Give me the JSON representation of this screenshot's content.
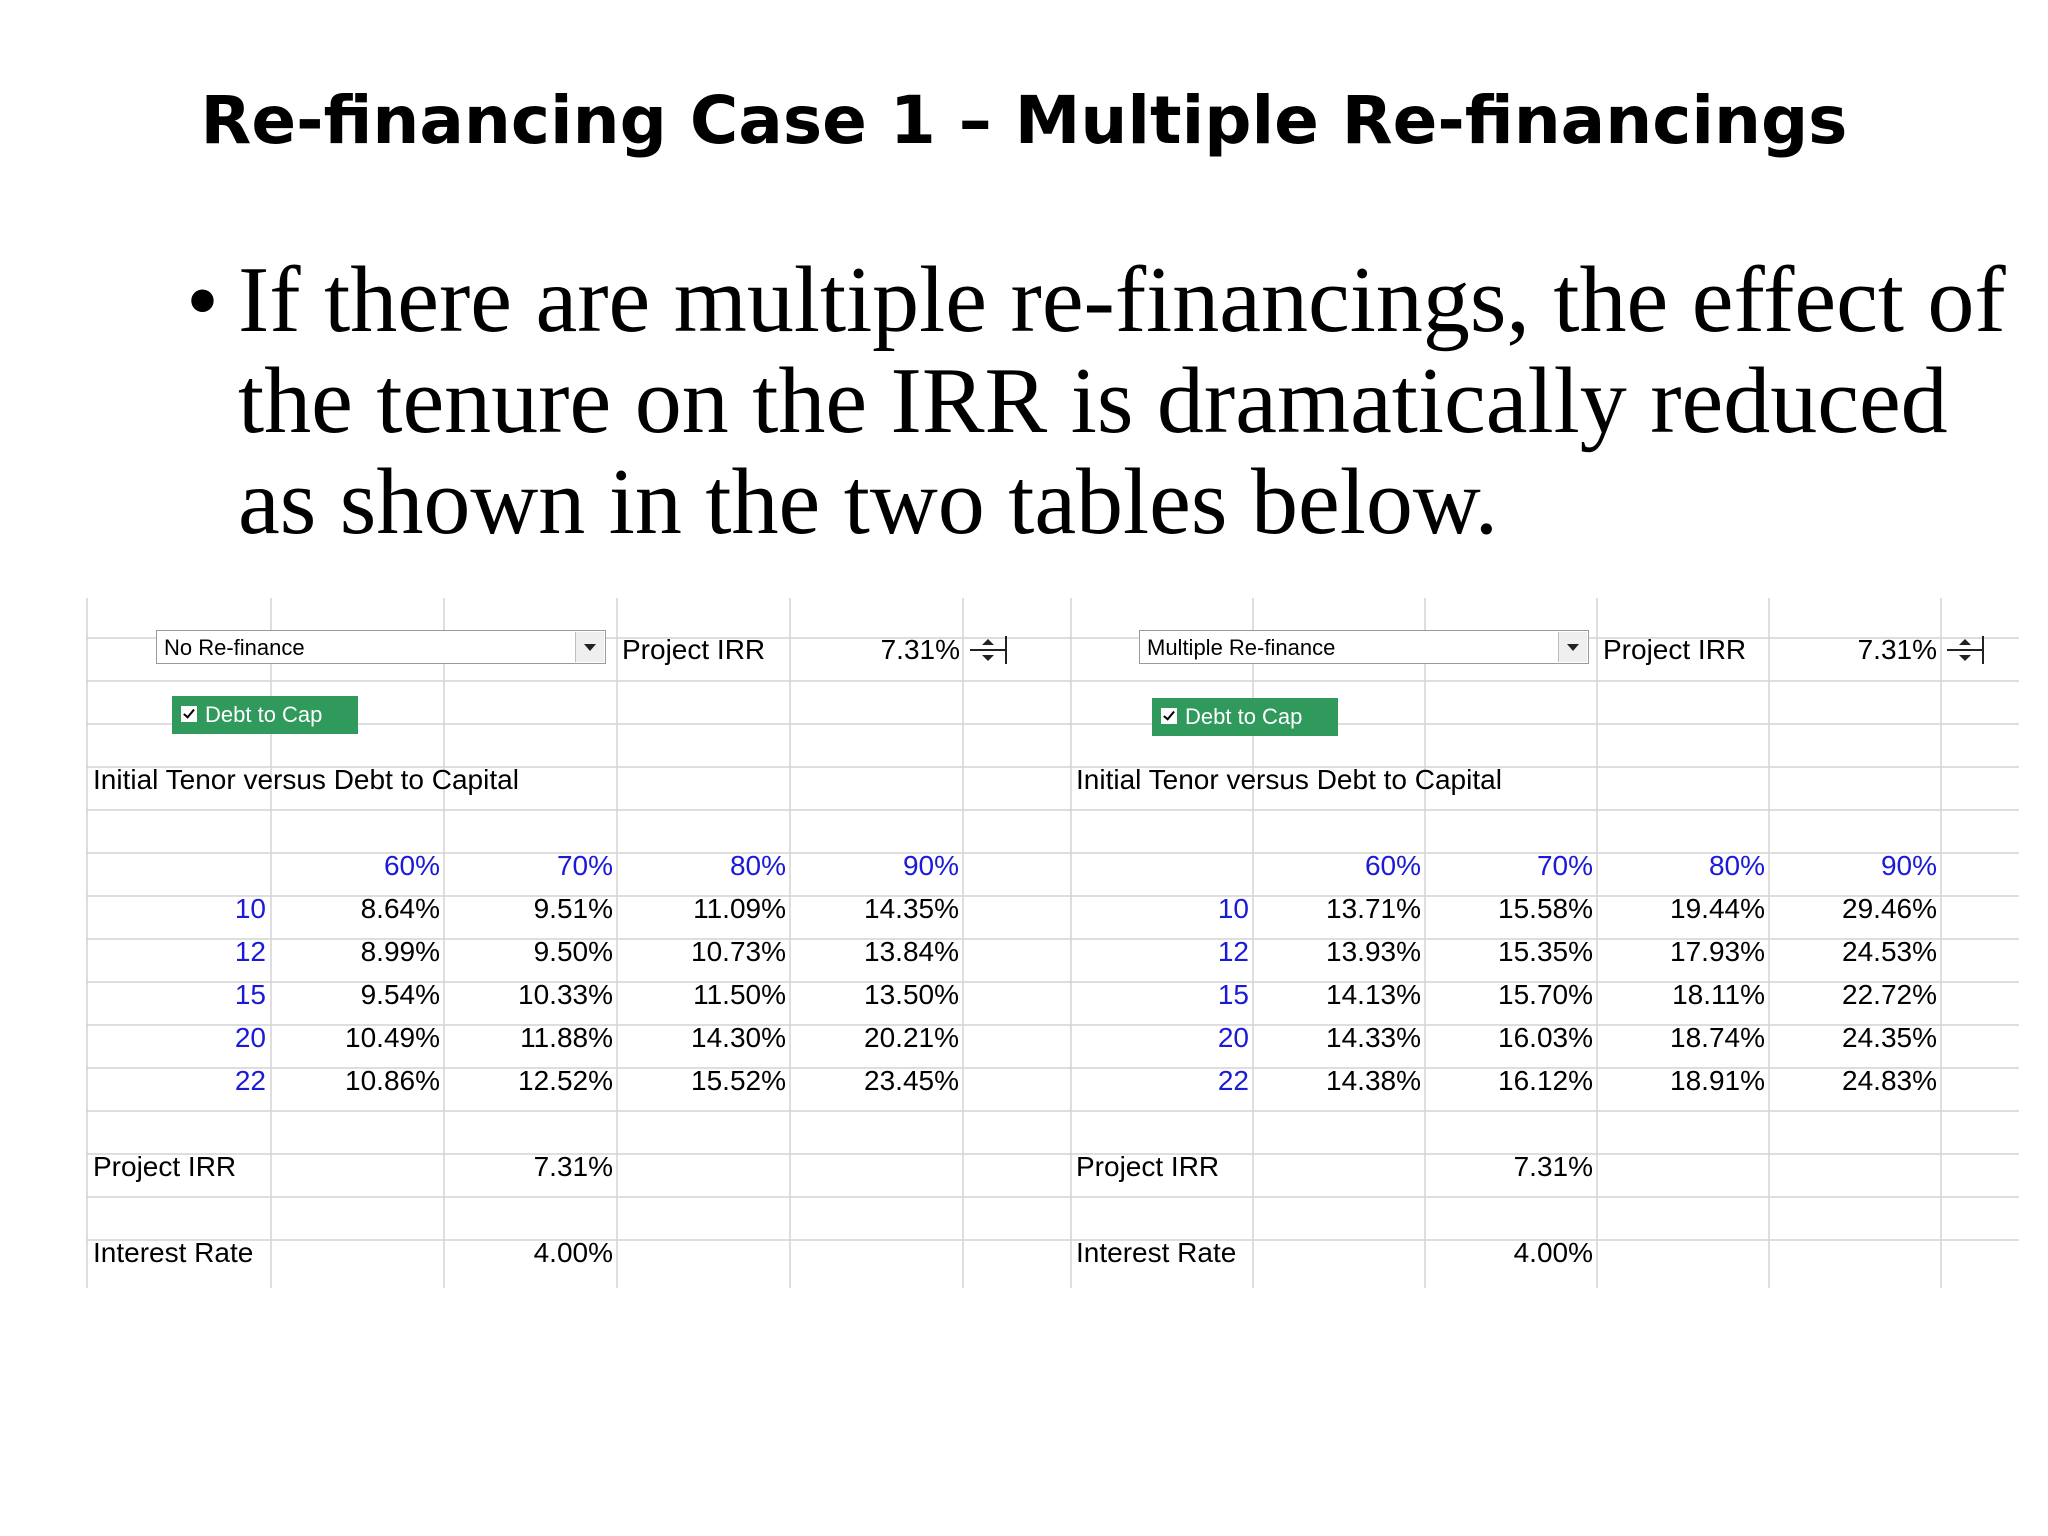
{
  "slide": {
    "title": "Re-financing Case 1 – Multiple Re-financings",
    "bullet_glyph": "•",
    "bullet_text": "If there are multiple re-financings, the effect of the tenure on the IRR is dramatically reduced as shown in the two tables below."
  },
  "left": {
    "dropdown_value": "No Re-finance",
    "project_irr_label": "Project IRR",
    "project_irr_value": "7.31%",
    "checkbox_label": "Debt to Cap",
    "table_title": "Initial Tenor versus Debt to Capital",
    "col_headers": [
      "60%",
      "70%",
      "80%",
      "90%"
    ],
    "rows": [
      {
        "tenor": "10",
        "values": [
          "8.64%",
          "9.51%",
          "11.09%",
          "14.35%"
        ]
      },
      {
        "tenor": "12",
        "values": [
          "8.99%",
          "9.50%",
          "10.73%",
          "13.84%"
        ]
      },
      {
        "tenor": "15",
        "values": [
          "9.54%",
          "10.33%",
          "11.50%",
          "13.50%"
        ]
      },
      {
        "tenor": "20",
        "values": [
          "10.49%",
          "11.88%",
          "14.30%",
          "20.21%"
        ]
      },
      {
        "tenor": "22",
        "values": [
          "10.86%",
          "12.52%",
          "15.52%",
          "23.45%"
        ]
      }
    ],
    "footer_irr_label": "Project IRR",
    "footer_irr_value": "7.31%",
    "interest_label": "Interest Rate",
    "interest_value": "4.00%"
  },
  "right": {
    "dropdown_value": "Multiple Re-finance",
    "project_irr_label": "Project IRR",
    "project_irr_value": "7.31%",
    "checkbox_label": "Debt to Cap",
    "table_title": "Initial Tenor versus Debt to Capital",
    "col_headers": [
      "60%",
      "70%",
      "80%",
      "90%"
    ],
    "rows": [
      {
        "tenor": "10",
        "values": [
          "13.71%",
          "15.58%",
          "19.44%",
          "29.46%"
        ]
      },
      {
        "tenor": "12",
        "values": [
          "13.93%",
          "15.35%",
          "17.93%",
          "24.53%"
        ]
      },
      {
        "tenor": "15",
        "values": [
          "14.13%",
          "15.70%",
          "18.11%",
          "22.72%"
        ]
      },
      {
        "tenor": "20",
        "values": [
          "14.33%",
          "16.03%",
          "18.74%",
          "24.35%"
        ]
      },
      {
        "tenor": "22",
        "values": [
          "14.38%",
          "16.12%",
          "18.91%",
          "24.83%"
        ]
      }
    ],
    "footer_irr_label": "Project IRR",
    "footer_irr_value": "7.31%",
    "interest_label": "Interest Rate",
    "interest_value": "4.00%"
  },
  "colors": {
    "header_blue": "#1a1ad8",
    "checkbox_green": "#2f9a5b",
    "gridline": "#d4d4d4"
  }
}
